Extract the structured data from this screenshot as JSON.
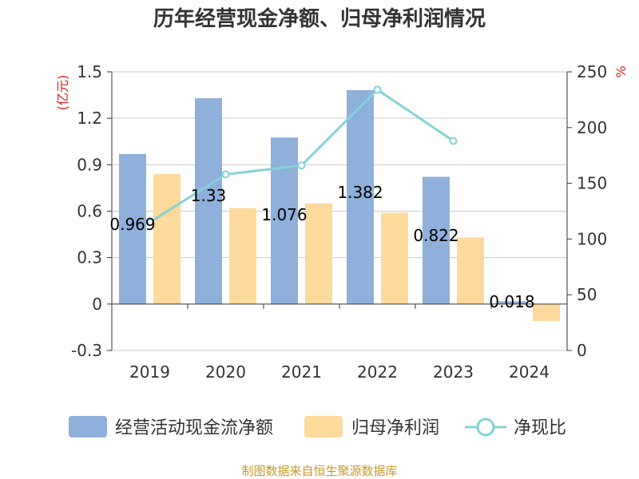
{
  "chart_data": {
    "type": "bar",
    "title": "历年经营现金净额、归母净利润情况",
    "categories": [
      "2019",
      "2020",
      "2021",
      "2022",
      "2023",
      "2024"
    ],
    "y_left": {
      "unit_label": "(亿元)",
      "ylim": [
        -0.3,
        1.5
      ],
      "ticks": [
        "1.5",
        "1.2",
        "0.9",
        "0.6",
        "0.3",
        "0",
        "-0.3"
      ],
      "tick_values": [
        1.5,
        1.2,
        0.9,
        0.6,
        0.3,
        0,
        -0.3
      ]
    },
    "y_right": {
      "unit_label": "%",
      "ylim": [
        0,
        250
      ],
      "ticks": [
        "250",
        "200",
        "150",
        "100",
        "50",
        "0"
      ],
      "tick_values": [
        250,
        200,
        150,
        100,
        50,
        0
      ]
    },
    "series": [
      {
        "name": "经营活动现金流净额",
        "kind": "bar",
        "axis": "left",
        "color": "#8eb0db",
        "values": [
          0.969,
          1.33,
          1.076,
          1.382,
          0.822,
          0.018
        ],
        "labels": [
          "0.969",
          "1.33",
          "1.076",
          "1.382",
          "0.822",
          "0.018"
        ]
      },
      {
        "name": "归母净利润",
        "kind": "bar",
        "axis": "left",
        "color": "#fdd99b",
        "values": [
          0.84,
          0.62,
          0.65,
          0.59,
          0.43,
          -0.11
        ]
      },
      {
        "name": "净现比",
        "kind": "line",
        "axis": "right",
        "color": "#85d2d6",
        "values": [
          115,
          158,
          166,
          234,
          188,
          null
        ]
      }
    ],
    "grid": true,
    "legend_position": "bottom"
  },
  "source_text": "制图数据来自恒生聚源数据库"
}
